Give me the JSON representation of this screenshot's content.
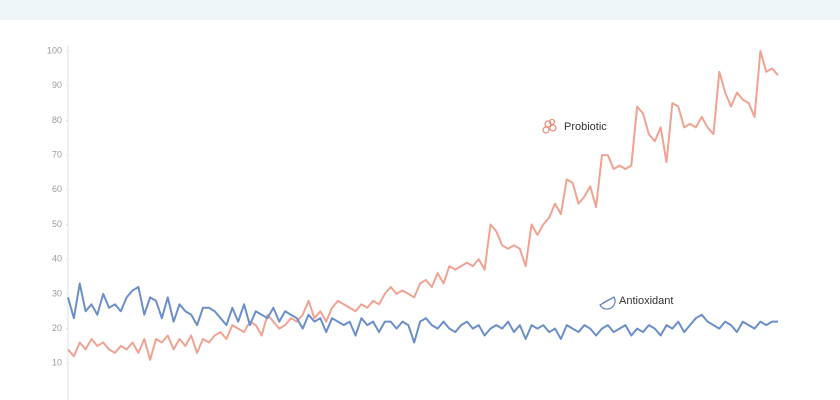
{
  "chart_data": {
    "type": "line",
    "ylim": [
      0,
      100
    ],
    "yticks": [
      10,
      20,
      30,
      40,
      50,
      60,
      70,
      80,
      90,
      100
    ],
    "series": [
      {
        "name": "Probiotic",
        "color": "#f0a392",
        "values": [
          14,
          12,
          16,
          14,
          17,
          15,
          16,
          14,
          13,
          15,
          14,
          16,
          13,
          17,
          11,
          17,
          16,
          18,
          14,
          17,
          15,
          18,
          13,
          17,
          16,
          18,
          19,
          17,
          21,
          20,
          19,
          22,
          21,
          18,
          24,
          22,
          20,
          21,
          23,
          22,
          24,
          28,
          23,
          25,
          22,
          26,
          28,
          27,
          26,
          25,
          27,
          26,
          28,
          27,
          30,
          32,
          30,
          31,
          30,
          29,
          33,
          34,
          32,
          36,
          33,
          38,
          37,
          38,
          39,
          38,
          40,
          37,
          50,
          48,
          44,
          43,
          44,
          43,
          38,
          50,
          47,
          50,
          52,
          56,
          53,
          63,
          62,
          56,
          58,
          61,
          55,
          70,
          70,
          66,
          67,
          66,
          67,
          84,
          82,
          76,
          74,
          78,
          68,
          85,
          84,
          78,
          79,
          78,
          81,
          78,
          76,
          94,
          88,
          84,
          88,
          86,
          85,
          81,
          100,
          94,
          95,
          93
        ]
      },
      {
        "name": "Antioxidant",
        "color": "#6b8fc9",
        "values": [
          29,
          23,
          33,
          25,
          27,
          24,
          30,
          26,
          27,
          25,
          29,
          31,
          32,
          24,
          29,
          28,
          23,
          29,
          22,
          27,
          25,
          24,
          21,
          26,
          26,
          25,
          23,
          21,
          26,
          22,
          27,
          21,
          25,
          24,
          23,
          26,
          22,
          25,
          24,
          23,
          20,
          24,
          22,
          23,
          19,
          23,
          22,
          21,
          22,
          18,
          23,
          21,
          22,
          19,
          22,
          22,
          20,
          22,
          21,
          16,
          22,
          23,
          21,
          20,
          22,
          20,
          19,
          21,
          22,
          20,
          21,
          18,
          20,
          21,
          20,
          22,
          19,
          21,
          17,
          21,
          20,
          21,
          19,
          20,
          17,
          21,
          20,
          19,
          21,
          20,
          18,
          20,
          21,
          19,
          20,
          21,
          18,
          20,
          19,
          21,
          20,
          18,
          21,
          20,
          22,
          19,
          21,
          23,
          24,
          22,
          21,
          20,
          22,
          21,
          19,
          22,
          21,
          20,
          22,
          21,
          22,
          22
        ]
      }
    ]
  }
}
